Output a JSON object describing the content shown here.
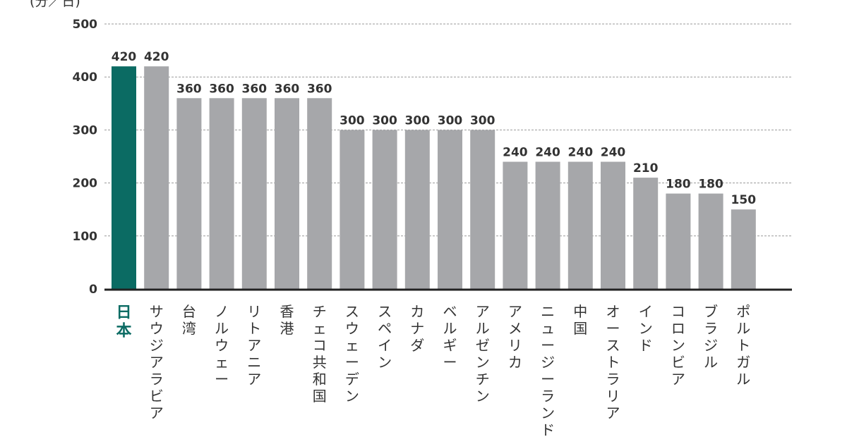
{
  "chart_data": {
    "type": "bar",
    "ylabel": "(分／日)",
    "ylim": [
      0,
      500
    ],
    "yticks": [
      0,
      100,
      200,
      300,
      400,
      500
    ],
    "grid": true,
    "categories": [
      "日本",
      "サウジアラビア",
      "台湾",
      "ノルウェー",
      "リトアニア",
      "香港",
      "チェコ共和国",
      "スウェーデン",
      "スペイン",
      "カナダ",
      "ベルギー",
      "アルゼンチン",
      "アメリカ",
      "ニュージーランド",
      "中国",
      "オーストラリア",
      "インド",
      "コロンビア",
      "ブラジル",
      "ポルトガル"
    ],
    "values": [
      420,
      420,
      360,
      360,
      360,
      360,
      360,
      300,
      300,
      300,
      300,
      300,
      240,
      240,
      240,
      240,
      210,
      180,
      180,
      150
    ],
    "highlight_category": "日本",
    "colors": {
      "highlight": "#0b6b63",
      "bar": "#a6a7aa",
      "axis": "#222222",
      "grid": "#999999"
    }
  }
}
